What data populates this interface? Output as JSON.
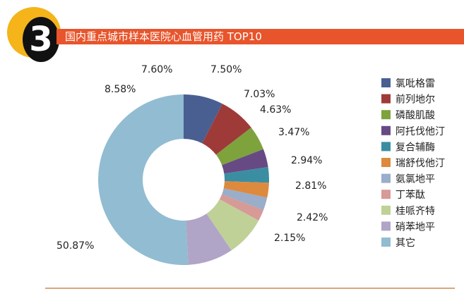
{
  "header": {
    "badge_number": "3",
    "title": "国内重点城市样本医院心血管用药 TOP10"
  },
  "colors": {
    "badge_ring": "#f4b41a",
    "title_bar": "#e8542b"
  },
  "chart_data": {
    "type": "pie",
    "donut": true,
    "legend_position": "right",
    "series": [
      {
        "name": "氯吡格雷",
        "value": 7.5,
        "label": "7.50%",
        "color": "#4a5f91"
      },
      {
        "name": "前列地尔",
        "value": 7.03,
        "label": "7.03%",
        "color": "#9e3b38"
      },
      {
        "name": "磷酸肌酸",
        "value": 4.63,
        "label": "4.63%",
        "color": "#7ea33d"
      },
      {
        "name": "阿托伐他汀",
        "value": 3.47,
        "label": "3.47%",
        "color": "#674a84"
      },
      {
        "name": "复合辅酶",
        "value": 2.94,
        "label": "2.94%",
        "color": "#3b8ea1"
      },
      {
        "name": "瑞舒伐他汀",
        "value": 2.81,
        "label": "2.81%",
        "color": "#dd8a3e"
      },
      {
        "name": "氨氯地平",
        "value": 2.42,
        "label": "2.42%",
        "color": "#9aadc9"
      },
      {
        "name": "丁苯酞",
        "value": 2.15,
        "label": "2.15%",
        "color": "#d69a97"
      },
      {
        "name": "桂哌齐特",
        "value": 7.6,
        "label": "7.60%",
        "color": "#bfd197"
      },
      {
        "name": "硝苯地平",
        "value": 8.58,
        "label": "8.58%",
        "color": "#b0a5c6"
      },
      {
        "name": "其它",
        "value": 50.87,
        "label": "50.87%",
        "color": "#92bcd1"
      }
    ]
  }
}
